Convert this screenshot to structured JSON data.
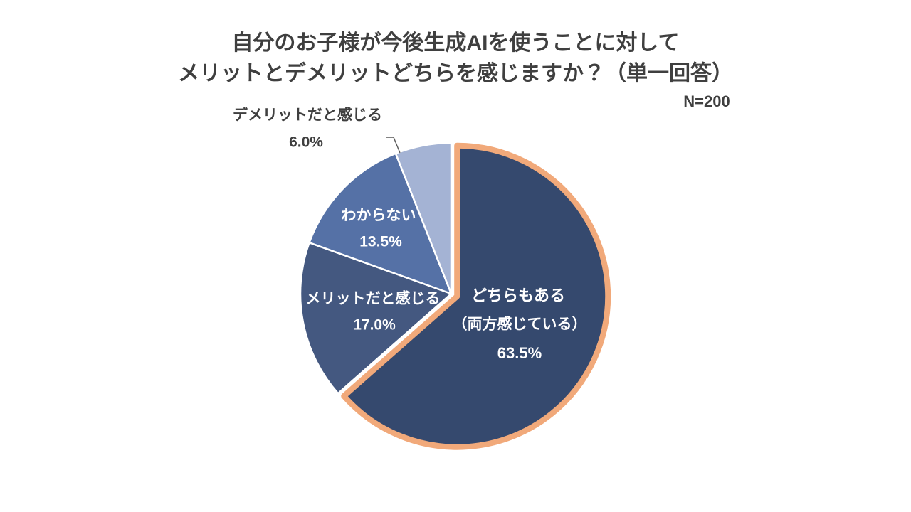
{
  "page": {
    "background": "#FFFFFF",
    "text_color": "#3F3F3F"
  },
  "header": {
    "title_line1": "自分のお子様が今後生成AIを使うことに対して",
    "title_line2": "メリットとデメリットどちらを感じますか？（単一回答）",
    "sample_size": "N=200"
  },
  "chart_data": {
    "type": "pie",
    "title": "自分のお子様が今後生成AIを使うことに対して メリットとデメリットどちらを感じますか？（単一回答）",
    "sample_size": "N=200",
    "start_angle_deg": 0,
    "direction": "clockwise",
    "inside_label_color": "#FFFFFF",
    "outside_label_color": "#3F3F3F",
    "leader_line_color": "#595959",
    "slices": [
      {
        "key": "both",
        "label": "どちらもある",
        "label_line2": "（両方感じている）",
        "pct_label": "63.5%",
        "value": 63.5,
        "color": "#35496E",
        "border_color": "#F1A97A",
        "exploded": true,
        "label_placement": "inside"
      },
      {
        "key": "merit",
        "label": "メリットだと感じる",
        "pct_label": "17.0%",
        "value": 17.0,
        "color": "#445880",
        "border_color": "#FFFFFF",
        "exploded": false,
        "label_placement": "inside"
      },
      {
        "key": "unknown",
        "label": "わからない",
        "pct_label": "13.5%",
        "value": 13.5,
        "color": "#5571A6",
        "border_color": "#FFFFFF",
        "exploded": false,
        "label_placement": "inside"
      },
      {
        "key": "demerit",
        "label": "デメリットだと感じる",
        "pct_label": "6.0%",
        "value": 6.0,
        "color": "#A4B3D4",
        "border_color": "#FFFFFF",
        "exploded": false,
        "label_placement": "outside"
      }
    ]
  }
}
